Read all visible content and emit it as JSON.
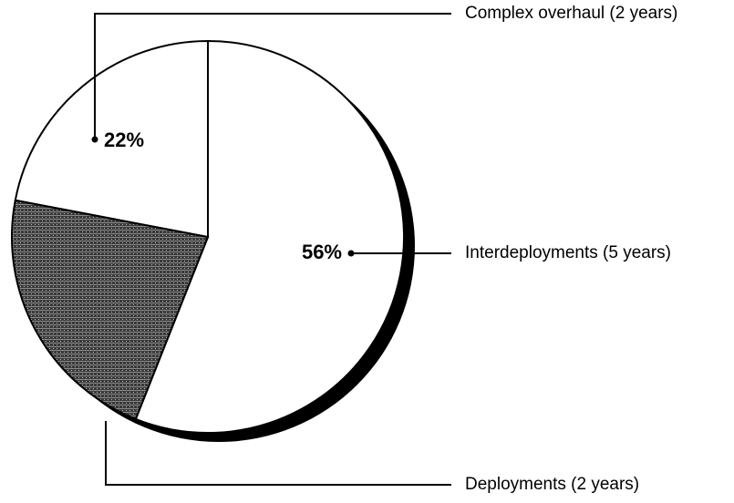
{
  "chart_data": {
    "type": "pie",
    "categories": [
      "Interdeployments (5 years)",
      "Deployments (2 years)",
      "Complex overhaul (2 years)"
    ],
    "values": [
      56,
      22,
      22
    ],
    "value_labels": [
      "56%",
      null,
      "22%"
    ],
    "colors": [
      "#ffffff",
      "#4a4a4a",
      "#ffffff"
    ]
  }
}
